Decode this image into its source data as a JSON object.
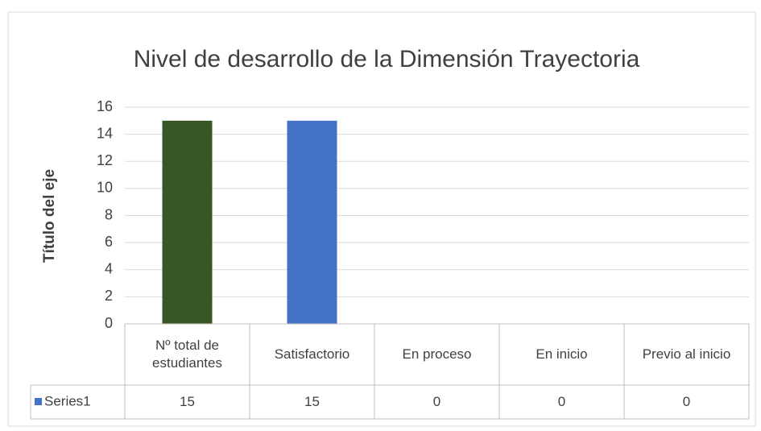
{
  "chart_data": {
    "type": "bar",
    "title": "Nivel de desarrollo de la Dimensión Trayectoria",
    "y_axis_label": "Título del eje",
    "categories": [
      "Nº total de estudiantes",
      "Satisfactorio",
      "En proceso",
      "En inicio",
      "Previo al inicio"
    ],
    "series": [
      {
        "name": "Series1",
        "color": "#4472c4",
        "point_colors": [
          "#375623",
          "#4472c4",
          "#4472c4",
          "#4472c4",
          "#4472c4"
        ],
        "values": [
          15,
          15,
          0,
          0,
          0
        ]
      }
    ],
    "ylim": [
      0,
      16
    ],
    "yticks": [
      0,
      2,
      4,
      6,
      8,
      10,
      12,
      14,
      16
    ],
    "grid": true,
    "data_table": true
  }
}
